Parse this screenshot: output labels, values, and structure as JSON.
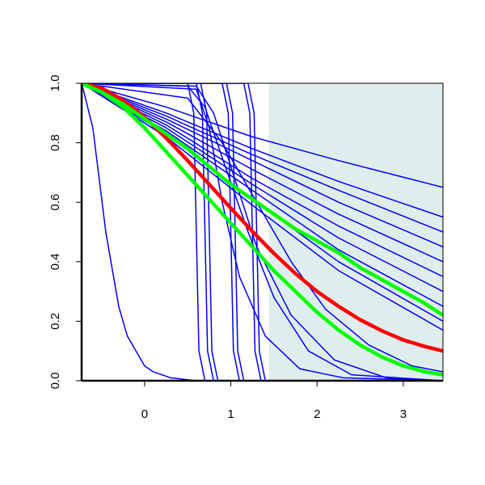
{
  "chart_data": {
    "type": "line",
    "xlim": [
      -0.73,
      3.46
    ],
    "ylim": [
      0,
      1
    ],
    "xticks": [
      0,
      1,
      2,
      3
    ],
    "yticks": [
      {
        "value": 0,
        "label": "0.0"
      },
      {
        "value": 0.2,
        "label": "0.2"
      },
      {
        "value": 0.4,
        "label": "0.4"
      },
      {
        "value": 0.6,
        "label": "0.6"
      },
      {
        "value": 0.8,
        "label": "0.8"
      },
      {
        "value": 1,
        "label": "1.0"
      }
    ],
    "shaded_region": {
      "xlim": [
        1.44,
        3.46
      ],
      "color": "#e0eded"
    },
    "series": [
      {
        "color": "#0000ff",
        "width": 1.5,
        "x": [
          -0.73,
          0.25,
          1.25,
          2.25,
          3.46
        ],
        "values": [
          1,
          0.92,
          0.82,
          0.74,
          0.65
        ]
      },
      {
        "color": "#0000ff",
        "width": 1.5,
        "x": [
          -0.73,
          0.25,
          1.25,
          2.25,
          3.46
        ],
        "values": [
          1,
          0.9,
          0.78,
          0.67,
          0.55
        ]
      },
      {
        "color": "#0000ff",
        "width": 1.5,
        "x": [
          -0.73,
          0.25,
          1.25,
          2.25,
          3.46
        ],
        "values": [
          1,
          0.89,
          0.76,
          0.64,
          0.5
        ]
      },
      {
        "color": "#0000ff",
        "width": 1.5,
        "x": [
          -0.73,
          0.25,
          1.25,
          2.25,
          3.46
        ],
        "values": [
          1,
          0.88,
          0.74,
          0.6,
          0.45
        ]
      },
      {
        "color": "#0000ff",
        "width": 1.5,
        "x": [
          -0.73,
          0.25,
          1.25,
          2.25,
          3.46
        ],
        "values": [
          1,
          0.87,
          0.71,
          0.56,
          0.4
        ]
      },
      {
        "color": "#0000ff",
        "width": 1.5,
        "x": [
          -0.73,
          0.25,
          1.25,
          2.25,
          3.46
        ],
        "values": [
          1,
          0.86,
          0.68,
          0.52,
          0.35
        ]
      },
      {
        "color": "#0000ff",
        "width": 1.5,
        "x": [
          -0.73,
          0.25,
          1.25,
          2.25,
          3.46
        ],
        "values": [
          1,
          0.85,
          0.66,
          0.48,
          0.3
        ]
      },
      {
        "color": "#0000ff",
        "width": 1.5,
        "x": [
          -0.73,
          0.25,
          1.25,
          2.25,
          3.46
        ],
        "values": [
          1,
          0.84,
          0.64,
          0.44,
          0.25
        ]
      },
      {
        "color": "#0000ff",
        "width": 1.5,
        "x": [
          -0.73,
          0.25,
          1.25,
          2.25,
          3.46
        ],
        "values": [
          1,
          0.83,
          0.61,
          0.4,
          0.2
        ]
      },
      {
        "color": "#0000ff",
        "width": 1.5,
        "x": [
          -0.73,
          0.25,
          1.25,
          2.25,
          3.46
        ],
        "values": [
          1,
          0.82,
          0.59,
          0.37,
          0.17
        ]
      },
      {
        "color": "#0000ff",
        "width": 1.5,
        "x": [
          -0.73,
          -0.6,
          -0.45,
          -0.3,
          -0.2,
          0,
          0.1,
          0.3,
          0.6,
          3.46
        ],
        "values": [
          1,
          0.85,
          0.5,
          0.25,
          0.15,
          0.05,
          0.03,
          0.01,
          0,
          0
        ]
      },
      {
        "color": "#0000ff",
        "width": 1.5,
        "x": [
          -0.73,
          0.5,
          0.57,
          0.6,
          0.63,
          0.7,
          3.46
        ],
        "values": [
          1,
          1,
          0.9,
          0.5,
          0.1,
          0,
          0
        ]
      },
      {
        "color": "#0000ff",
        "width": 1.5,
        "x": [
          -0.73,
          0.6,
          0.67,
          0.7,
          0.73,
          0.8,
          3.46
        ],
        "values": [
          1,
          1,
          0.9,
          0.5,
          0.1,
          0,
          0
        ]
      },
      {
        "color": "#0000ff",
        "width": 1.5,
        "x": [
          -0.73,
          0.65,
          0.72,
          0.75,
          0.78,
          0.85,
          3.46
        ],
        "values": [
          1,
          1,
          0.9,
          0.5,
          0.1,
          0,
          0
        ]
      },
      {
        "color": "#0000ff",
        "width": 1.5,
        "x": [
          -0.73,
          0.9,
          0.97,
          1,
          1.03,
          1.1,
          3.46
        ],
        "values": [
          1,
          1,
          0.9,
          0.5,
          0.1,
          0,
          0
        ]
      },
      {
        "color": "#0000ff",
        "width": 1.5,
        "x": [
          -0.73,
          0.95,
          1.02,
          1.05,
          1.08,
          1.15,
          3.46
        ],
        "values": [
          1,
          1,
          0.9,
          0.5,
          0.1,
          0,
          0
        ]
      },
      {
        "color": "#0000ff",
        "width": 1.5,
        "x": [
          -0.73,
          1.15,
          1.22,
          1.25,
          1.28,
          1.35,
          3.46
        ],
        "values": [
          1,
          1,
          0.9,
          0.5,
          0.1,
          0,
          0
        ]
      },
      {
        "color": "#0000ff",
        "width": 1.5,
        "x": [
          -0.73,
          1.2,
          1.27,
          1.3,
          1.33,
          1.4,
          3.46
        ],
        "values": [
          1,
          1,
          0.9,
          0.5,
          0.1,
          0,
          0
        ]
      },
      {
        "color": "#0000ff",
        "width": 1.5,
        "x": [
          -0.73,
          0.5,
          0.7,
          0.9,
          1.2,
          1.5,
          1.9,
          2.4,
          3.46
        ],
        "values": [
          1,
          0.99,
          0.92,
          0.75,
          0.5,
          0.28,
          0.1,
          0.02,
          0
        ]
      },
      {
        "color": "#0000ff",
        "width": 1.5,
        "x": [
          -0.73,
          0.6,
          0.8,
          1,
          1.3,
          1.7,
          2.2,
          2.8,
          3.46
        ],
        "values": [
          1,
          0.99,
          0.9,
          0.72,
          0.45,
          0.22,
          0.07,
          0.01,
          0
        ]
      },
      {
        "color": "#0000ff",
        "width": 1.5,
        "x": [
          -0.73,
          0.6,
          0.75,
          0.9,
          1.1,
          1.4,
          1.8,
          2.3,
          3.46
        ],
        "values": [
          1,
          0.98,
          0.85,
          0.6,
          0.35,
          0.15,
          0.04,
          0.01,
          0
        ]
      },
      {
        "color": "#0000ff",
        "width": 1.5,
        "x": [
          -0.73,
          0.5,
          0.9,
          1.3,
          1.7,
          2.1,
          2.6,
          3.1,
          3.46
        ],
        "values": [
          1,
          0.95,
          0.8,
          0.6,
          0.4,
          0.24,
          0.12,
          0.05,
          0.03
        ]
      },
      {
        "color": "#ff0000",
        "width": 4.5,
        "x": [
          -0.73,
          -0.5,
          -0.25,
          0,
          0.25,
          0.5,
          0.75,
          1,
          1.25,
          1.5,
          1.75,
          2,
          2.25,
          2.5,
          2.75,
          3,
          3.25,
          3.46
        ],
        "values": [
          1,
          0.984,
          0.943,
          0.886,
          0.816,
          0.74,
          0.66,
          0.58,
          0.502,
          0.428,
          0.36,
          0.3,
          0.25,
          0.205,
          0.168,
          0.137,
          0.115,
          0.1
        ]
      },
      {
        "color": "#00ff00",
        "width": 4.5,
        "x": [
          -0.73,
          -0.5,
          -0.25,
          0,
          0.25,
          0.5,
          0.75,
          1,
          1.25,
          1.5,
          1.75,
          2,
          2.25,
          2.5,
          2.75,
          3,
          3.25,
          3.46
        ],
        "values": [
          1,
          0.97,
          0.93,
          0.88,
          0.83,
          0.78,
          0.72,
          0.66,
          0.61,
          0.56,
          0.51,
          0.47,
          0.43,
          0.38,
          0.34,
          0.3,
          0.26,
          0.22
        ]
      },
      {
        "color": "#00ff00",
        "width": 4.5,
        "x": [
          -0.73,
          -0.5,
          -0.25,
          0,
          0.25,
          0.5,
          0.75,
          1,
          1.25,
          1.5,
          1.75,
          2,
          2.25,
          2.5,
          2.75,
          3,
          3.25,
          3.46
        ],
        "values": [
          1,
          0.97,
          0.92,
          0.85,
          0.77,
          0.69,
          0.61,
          0.53,
          0.45,
          0.37,
          0.3,
          0.23,
          0.17,
          0.12,
          0.08,
          0.05,
          0.03,
          0.02
        ]
      }
    ]
  }
}
